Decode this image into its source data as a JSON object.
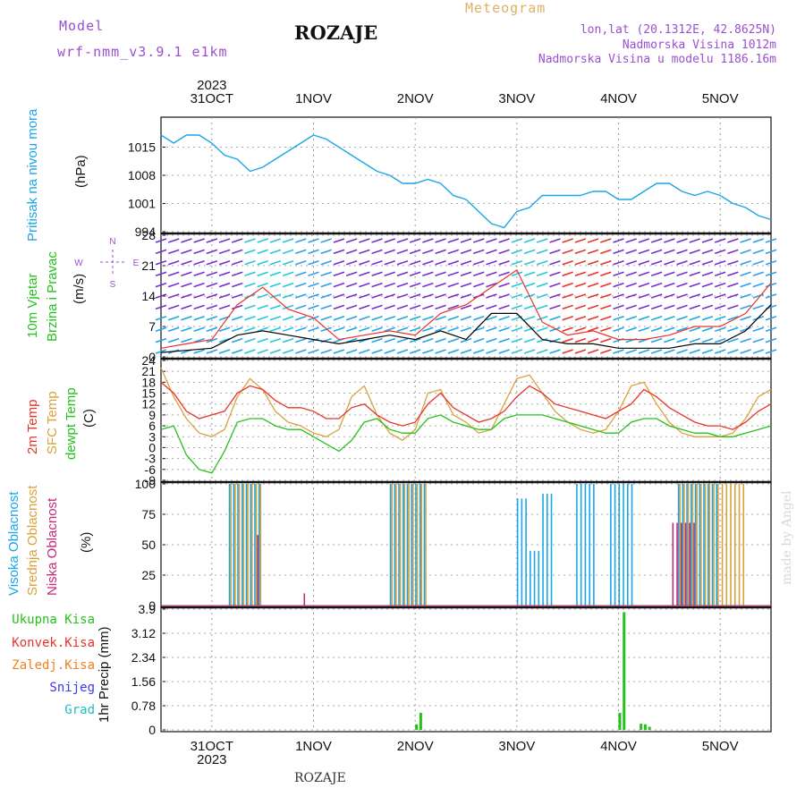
{
  "header": {
    "model_label": "Model",
    "model_name": "wrf-nmm_v3.9.1 e1km",
    "station": "ROZAJE",
    "product": "Meteogram",
    "lonlat": "lon,lat (20.1312E, 42.8625N)",
    "elevation": "Nadmorska Visina 1012m",
    "model_elevation": "Nadmorska Visina u modelu 1186.16m",
    "footer_station": "ROZAJE",
    "credit": "made by Angel"
  },
  "colors": {
    "pressure": "#1aa6e8",
    "wind_speed": "#000000",
    "wind_gust": "#e8332a",
    "temp_2m": "#e8332a",
    "temp_sfc": "#d9a23a",
    "dewpoint": "#26c21c",
    "cloud_high": "#1aa6e8",
    "cloud_mid": "#d9a23a",
    "cloud_low": "#c22a7a",
    "precip_total": "#26c21c",
    "precip_conv": "#e8332a",
    "precip_frozen": "#f08020",
    "snow": "#3a3ae8",
    "graupel": "#20c0c0",
    "model_label": "#9a4fd0",
    "product_title": "#e0b060"
  },
  "time_axis": {
    "year_label": "2023",
    "days": [
      "31OCT",
      "1NOV",
      "2NOV",
      "3NOV",
      "4NOV",
      "5NOV"
    ],
    "start": "30OCT 12h",
    "end": "5NOV 12h"
  },
  "chart_data": [
    {
      "type": "line",
      "panel": "pressure",
      "ylabel_main": "Pritisak na nivou mora",
      "ylabel_unit": "(hPa)",
      "yticks": [
        994,
        1001,
        1008,
        1015
      ],
      "ylim": [
        994,
        1022
      ],
      "x_hours": [
        0,
        3,
        6,
        9,
        12,
        15,
        18,
        21,
        24,
        27,
        30,
        33,
        36,
        39,
        42,
        45,
        48,
        51,
        54,
        57,
        60,
        63,
        66,
        69,
        72,
        75,
        78,
        81,
        84,
        87,
        90,
        93,
        96,
        99,
        102,
        105,
        108,
        111,
        114,
        117,
        120,
        123,
        126,
        129,
        132,
        135,
        138,
        141,
        144
      ],
      "series": [
        {
          "values": [
            1018,
            1016,
            1018,
            1018,
            1016,
            1013,
            1012,
            1009,
            1010,
            1012,
            1014,
            1016,
            1018,
            1017,
            1015,
            1013,
            1011,
            1009,
            1008,
            1006,
            1006,
            1007,
            1006,
            1003,
            1002,
            999,
            996,
            995,
            999,
            1000,
            1003,
            1003,
            1003,
            1003,
            1004,
            1004,
            1002,
            1002,
            1004,
            1006,
            1006,
            1004,
            1003,
            1004,
            1003,
            1001,
            1000,
            998,
            997
          ]
        }
      ]
    },
    {
      "type": "line",
      "panel": "wind",
      "ylabel_main": "10m Vjetar",
      "ylabel_sub": "Brzina i Pravac",
      "ylabel_unit": "(m/s)",
      "compass": [
        "N",
        "E",
        "S",
        "W"
      ],
      "yticks": [
        0,
        7,
        14,
        21,
        28
      ],
      "ylim": [
        0,
        28
      ],
      "x_hours": [
        0,
        6,
        12,
        18,
        24,
        30,
        36,
        42,
        48,
        54,
        60,
        66,
        72,
        78,
        84,
        90,
        96,
        102,
        108,
        114,
        120,
        126,
        132,
        138,
        144
      ],
      "series": [
        {
          "name": "speed",
          "values": [
            1,
            1.5,
            2,
            5,
            6,
            5,
            4,
            3,
            4,
            5,
            4,
            6,
            4,
            10,
            10,
            4,
            3,
            3,
            2,
            2,
            2,
            3,
            3,
            6,
            12
          ]
        },
        {
          "name": "gust",
          "values": [
            2,
            3,
            4,
            12,
            16,
            11,
            9,
            4,
            5,
            6,
            5,
            10,
            12,
            16,
            20,
            8,
            5,
            6,
            4,
            4,
            5,
            7,
            7,
            10,
            17
          ]
        }
      ]
    },
    {
      "type": "line",
      "panel": "temperature",
      "ylabel_lines": [
        "2m Temp",
        "SFC Temp",
        "dewpt Temp"
      ],
      "ylabel_unit": "(C)",
      "yticks": [
        -9,
        -6,
        -3,
        0,
        3,
        6,
        9,
        12,
        15,
        18,
        21,
        24
      ],
      "ylim": [
        -9,
        24
      ],
      "x_hours": [
        0,
        3,
        6,
        9,
        12,
        15,
        18,
        21,
        24,
        27,
        30,
        33,
        36,
        39,
        42,
        45,
        48,
        51,
        54,
        57,
        60,
        63,
        66,
        69,
        72,
        75,
        78,
        81,
        84,
        87,
        90,
        93,
        96,
        99,
        102,
        105,
        108,
        111,
        114,
        117,
        120,
        123,
        126,
        129,
        132,
        135,
        138,
        141,
        144
      ],
      "series": [
        {
          "name": "2m Temp",
          "values": [
            18,
            15,
            10,
            8,
            9,
            10,
            15,
            17,
            16,
            13,
            11,
            11,
            10,
            8,
            8,
            11,
            12,
            9,
            7,
            6,
            7,
            12,
            15,
            11,
            9,
            7,
            8,
            10,
            14,
            17,
            15,
            12,
            11,
            10,
            9,
            8,
            10,
            12,
            16,
            14,
            11,
            9,
            7,
            6,
            6,
            5,
            7,
            10,
            12
          ]
        },
        {
          "name": "SFC Temp",
          "values": [
            22,
            14,
            8,
            4,
            3,
            5,
            14,
            19,
            16,
            10,
            7,
            6,
            4,
            3,
            5,
            14,
            17,
            9,
            4,
            2,
            5,
            15,
            16,
            9,
            7,
            4,
            5,
            12,
            19,
            20,
            15,
            10,
            7,
            5,
            4,
            5,
            10,
            17,
            18,
            12,
            7,
            4,
            3,
            3,
            3,
            4,
            8,
            14,
            16
          ]
        },
        {
          "name": "dewpt Temp",
          "values": [
            5,
            6,
            -2,
            -6,
            -7,
            -1,
            7,
            8,
            8,
            6,
            5,
            5,
            3,
            1,
            -1,
            2,
            7,
            8,
            5,
            4,
            4,
            8,
            9,
            7,
            6,
            5,
            5,
            8,
            9,
            9,
            9,
            8,
            7,
            6,
            5,
            4,
            4,
            7,
            8,
            8,
            6,
            5,
            4,
            4,
            3,
            3,
            4,
            5,
            6
          ]
        }
      ]
    },
    {
      "type": "bar",
      "panel": "clouds",
      "ylabel_lines": [
        "Visoka Oblacnost",
        "Srednja Oblacnost",
        "Niska Oblacnost"
      ],
      "ylabel_unit": "(%)",
      "yticks": [
        0,
        25,
        50,
        75,
        100
      ],
      "ylim": [
        0,
        100
      ],
      "series": [
        {
          "name": "Visoka Oblacnost",
          "segments": [
            [
              16,
              20,
              100
            ],
            [
              20,
              24,
              100
            ],
            [
              54,
              63,
              100
            ],
            [
              84,
              87,
              88
            ],
            [
              87,
              90,
              45
            ],
            [
              90,
              93,
              92
            ],
            [
              93,
              96,
              0
            ],
            [
              98,
              103,
              100
            ],
            [
              106,
              112,
              100
            ],
            [
              122,
              132,
              100
            ]
          ]
        },
        {
          "name": "Srednja Oblacnost",
          "segments": [
            [
              16,
              24,
              100
            ],
            [
              54,
              63,
              100
            ],
            [
              122,
              138,
              100
            ]
          ]
        },
        {
          "name": "Niska Oblacnost",
          "segments": [
            [
              22,
              23,
              58
            ],
            [
              33,
              34,
              10
            ],
            [
              120,
              126,
              68
            ]
          ]
        }
      ]
    },
    {
      "type": "bar",
      "panel": "precip",
      "ylabel_unit": "1hr Precip (mm)",
      "legend": [
        "Ukupna Kisa",
        "Konvek.Kisa",
        "Zaledj.Kisa",
        "Snijeg",
        "Grad"
      ],
      "yticks": [
        0,
        0.78,
        1.56,
        2.34,
        3.12,
        3.9
      ],
      "ylim": [
        0,
        3.9
      ],
      "series": [
        {
          "name": "Ukupna Kisa",
          "bars": [
            [
              60,
              0.18
            ],
            [
              61,
              0.55
            ],
            [
              108,
              0.55
            ],
            [
              109,
              3.8
            ],
            [
              113,
              0.2
            ],
            [
              114,
              0.18
            ],
            [
              115,
              0.1
            ]
          ]
        }
      ]
    }
  ]
}
